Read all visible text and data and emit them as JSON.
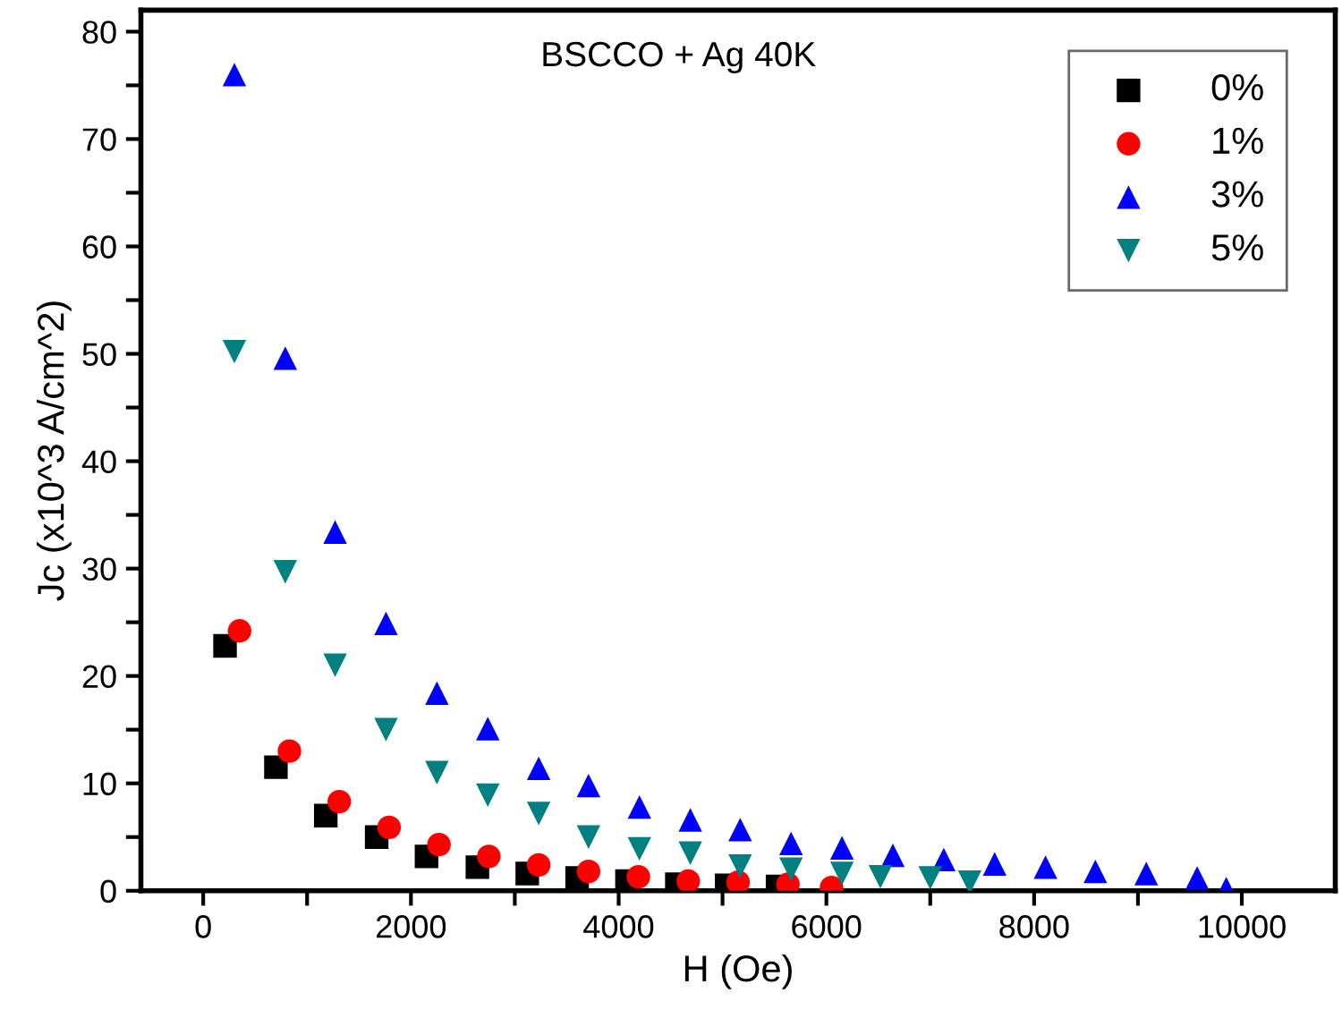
{
  "chart_data": {
    "type": "scatter",
    "title": "BSCCO + Ag 40K",
    "xlabel": "H (Oe)",
    "ylabel": "Jc (x10^3 A/cm^2)",
    "xlim": [
      -600,
      10900
    ],
    "ylim": [
      0,
      82
    ],
    "xticks": [
      0,
      {
        "value": 1000,
        "label": null
      },
      2000,
      {
        "value": 3000,
        "label": null
      },
      4000,
      {
        "value": 5000,
        "label": null
      },
      6000,
      {
        "value": 7000,
        "label": null
      },
      8000,
      {
        "value": 9000,
        "label": null
      },
      10000
    ],
    "yticks": [
      0,
      {
        "value": 5,
        "label": null
      },
      10,
      {
        "value": 15,
        "label": null
      },
      20,
      {
        "value": 25,
        "label": null
      },
      30,
      {
        "value": 35,
        "label": null
      },
      40,
      {
        "value": 45,
        "label": null
      },
      50,
      {
        "value": 55,
        "label": null
      },
      60,
      {
        "value": 65,
        "label": null
      },
      70,
      {
        "value": 75,
        "label": null
      },
      80
    ],
    "grid": false,
    "legend": "top right",
    "series": [
      {
        "name": "0%",
        "color": "#000000",
        "marker": "square",
        "x": [
          210,
          700,
          1180,
          1670,
          2150,
          2640,
          3120,
          3600,
          4080,
          4560,
          5040,
          5530
        ],
        "values": [
          22.8,
          11.5,
          7,
          5,
          3.2,
          2.2,
          1.6,
          1.2,
          0.9,
          0.6,
          0.5,
          0.4
        ]
      },
      {
        "name": "1%",
        "color": "#ff0000",
        "marker": "circle",
        "x": [
          350,
          830,
          1310,
          1790,
          2270,
          2750,
          3230,
          3710,
          4190,
          4670,
          5150,
          5630,
          6050
        ],
        "values": [
          24.2,
          13,
          8.3,
          5.9,
          4.3,
          3.2,
          2.4,
          1.8,
          1.3,
          0.9,
          0.8,
          0.6,
          0.3
        ]
      },
      {
        "name": "3%",
        "color": "#0000ff",
        "marker": "triangle",
        "x": [
          300,
          790,
          1270,
          1760,
          2250,
          2740,
          3230,
          3710,
          4200,
          4690,
          5170,
          5660,
          6150,
          6640,
          7130,
          7620,
          8110,
          8590,
          9080,
          9570,
          9850
        ],
        "values": [
          76,
          49.6,
          33.4,
          24.9,
          18.4,
          15.1,
          11.4,
          9.8,
          7.8,
          6.6,
          5.7,
          4.4,
          4,
          3.3,
          2.9,
          2.5,
          2.2,
          1.8,
          1.6,
          1.2,
          0.2
        ]
      },
      {
        "name": "5%",
        "color": "#008080",
        "marker": "triangle_down",
        "x": [
          300,
          790,
          1270,
          1760,
          2250,
          2740,
          3230,
          3710,
          4200,
          4690,
          5170,
          5660,
          6150,
          6520,
          7000,
          7380
        ],
        "values": [
          50.2,
          29.7,
          21,
          15,
          11,
          8.9,
          7.2,
          5,
          3.9,
          3.5,
          2.3,
          2,
          1.6,
          1.3,
          1.2,
          0.8
        ]
      }
    ]
  }
}
